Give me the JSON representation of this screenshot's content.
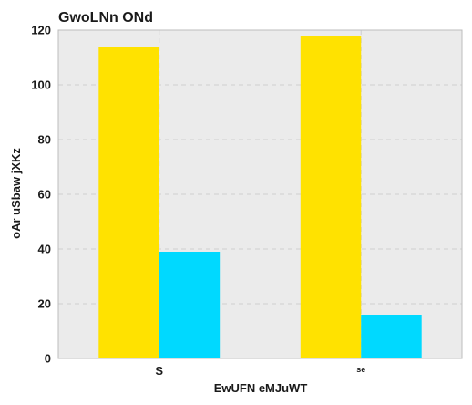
{
  "chart_data": {
    "type": "bar",
    "title": "GwoLNn ONd",
    "xlabel": "EwUFN eMJuWT",
    "ylabel": "oAr uSbaw jXKz",
    "categories": [
      "S",
      "se"
    ],
    "series": [
      {
        "values": [
          114,
          118
        ],
        "color": "#FFE200"
      },
      {
        "values": [
          39,
          16
        ],
        "color": "#00D9FF"
      }
    ],
    "ylim": [
      0,
      120
    ],
    "yticks": [
      0,
      20,
      40,
      60,
      80,
      100,
      120
    ],
    "grid": true,
    "background": "#EBEBEB"
  }
}
